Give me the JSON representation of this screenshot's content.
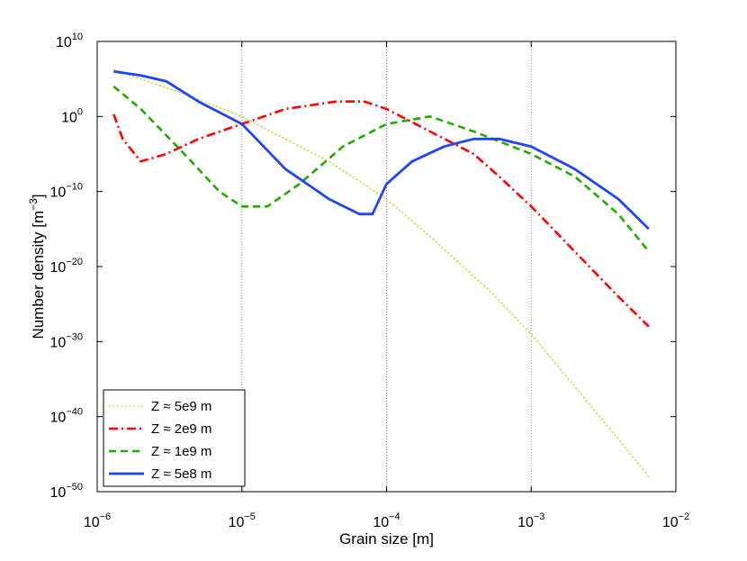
{
  "chart_data": {
    "type": "line",
    "title": "",
    "xlabel": "Grain size [m]",
    "ylabel": "Number density [m",
    "ylabel_exp": "−3",
    "ylabel_close": "]",
    "xscale": "log",
    "yscale": "log",
    "xlim": [
      1e-06,
      0.01
    ],
    "ylim": [
      1e-50,
      10000000000.0
    ],
    "x_ticks": [
      {
        "base": "10",
        "exp": "−6",
        "value": 1e-06
      },
      {
        "base": "10",
        "exp": "−5",
        "value": 1e-05
      },
      {
        "base": "10",
        "exp": "−4",
        "value": 0.0001
      },
      {
        "base": "10",
        "exp": "−3",
        "value": 0.001
      },
      {
        "base": "10",
        "exp": "−2",
        "value": 0.01
      }
    ],
    "y_ticks": [
      {
        "base": "10",
        "exp": "10",
        "value": 10000000000.0
      },
      {
        "base": "10",
        "exp": "0",
        "value": 1
      },
      {
        "base": "10",
        "exp": "−10",
        "value": 1e-10
      },
      {
        "base": "10",
        "exp": "−20",
        "value": 1e-20
      },
      {
        "base": "10",
        "exp": "−30",
        "value": 1e-30
      },
      {
        "base": "10",
        "exp": "−40",
        "value": 1e-40
      },
      {
        "base": "10",
        "exp": "−50",
        "value": 1e-50
      }
    ],
    "grid": "x-major-dotted",
    "legend_position": "bottom-left",
    "series": [
      {
        "name": "Z ≈ 5e9 m",
        "color": "#c8d230",
        "dash": "dotted",
        "x": [
          1.3e-06,
          2e-06,
          4e-06,
          1e-05,
          2e-05,
          4e-05,
          0.0001,
          0.0002,
          0.0005,
          0.001,
          0.002,
          0.004,
          0.0065
        ],
        "y": [
          2000000.0,
          100000.0,
          1000.0,
          1,
          0.001,
          1e-06,
          1e-11,
          1e-16,
          1e-23,
          1e-29,
          1e-36,
          1e-43,
          1e-48
        ]
      },
      {
        "name": "Z ≈ 2e9 m",
        "color": "#ff0000",
        "dash": "dashdot",
        "x": [
          1.3e-06,
          1.5e-06,
          2e-06,
          3e-06,
          5e-06,
          1e-05,
          2e-05,
          4.5e-05,
          7e-05,
          0.0001,
          0.0002,
          0.0004,
          0.0006,
          0.001,
          0.002,
          0.004,
          0.0065
        ],
        "y": [
          2.0,
          0.001,
          1e-06,
          1e-05,
          0.001,
          0.1,
          10.0,
          100.0,
          100.0,
          10.0,
          0.01,
          1e-05,
          1e-08,
          1e-12,
          1e-18,
          1e-24,
          1e-28
        ]
      },
      {
        "name": "Z ≈ 1e9 m",
        "color": "#22aa00",
        "dash": "dashed",
        "x": [
          1.3e-06,
          2e-06,
          4e-06,
          7e-06,
          1e-05,
          1.5e-05,
          2.5e-05,
          5e-05,
          0.0001,
          0.0002,
          0.0004,
          0.001,
          0.002,
          0.004,
          0.0065
        ],
        "y": [
          10000.0,
          10.0,
          1e-05,
          1e-10,
          1e-12,
          1e-12,
          1e-09,
          0.0001,
          0.1,
          1.0,
          0.01,
          1e-05,
          1e-08,
          1e-13,
          1e-18
        ]
      },
      {
        "name": "Z ≈ 5e8 m",
        "color": "#1f45fc",
        "dash": "solid",
        "x": [
          1.3e-06,
          2e-06,
          3e-06,
          5e-06,
          1e-05,
          2e-05,
          4e-05,
          6.5e-05,
          8e-05,
          0.0001,
          0.00015,
          0.00025,
          0.0004,
          0.0006,
          0.001,
          0.002,
          0.004,
          0.0065
        ],
        "y": [
          1000000.0,
          300000.0,
          50000.0,
          100.0,
          0.1,
          1e-07,
          1e-11,
          1e-13,
          1e-13,
          1e-09,
          1e-06,
          0.0001,
          0.001,
          0.001,
          0.0001,
          1e-07,
          1e-11,
          1e-15
        ]
      }
    ]
  }
}
